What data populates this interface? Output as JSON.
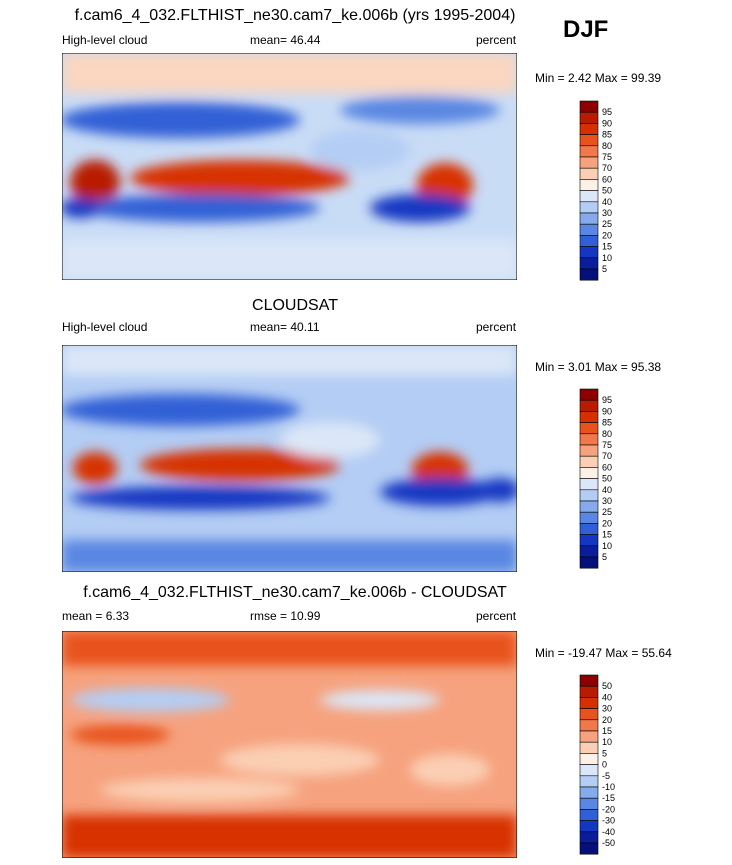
{
  "season": "DJF",
  "panels": [
    {
      "title": "f.cam6_4_032.FLTHIST_ne30.cam7_ke.006b (yrs 1995-2004)",
      "left": "High-level cloud",
      "center": "mean=  46.44",
      "right": "percent",
      "minmax": "Min =   2.42 Max =  99.39"
    },
    {
      "title": "CLOUDSAT",
      "left": "High-level cloud",
      "center": "mean=  40.11",
      "right": "percent",
      "minmax": "Min =   3.01 Max =  95.38"
    },
    {
      "title": "f.cam6_4_032.FLTHIST_ne30.cam7_ke.006b - CLOUDSAT",
      "left": "mean =   6.33",
      "center": "rmse =  10.99",
      "right": "percent",
      "minmax": "Min = -19.47 Max =  55.64"
    }
  ],
  "colorbars": {
    "field": {
      "labels": [
        "95",
        "90",
        "85",
        "80",
        "75",
        "70",
        "60",
        "50",
        "40",
        "30",
        "25",
        "20",
        "15",
        "10",
        "5"
      ],
      "colors": [
        "#8b0000",
        "#b71c00",
        "#d73000",
        "#e8521c",
        "#f0784a",
        "#f6a27e",
        "#fbcfb4",
        "#fdf0e6",
        "#dbe7f8",
        "#b4cdf4",
        "#86abec",
        "#5a87e2",
        "#3060d6",
        "#1238c2",
        "#0a1e9c",
        "#06107a"
      ]
    },
    "diff": {
      "labels": [
        "50",
        "40",
        "30",
        "20",
        "15",
        "10",
        "5",
        "0",
        "-5",
        "-10",
        "-15",
        "-20",
        "-30",
        "-40",
        "-50"
      ],
      "colors": [
        "#8b0000",
        "#b71c00",
        "#d73000",
        "#e8521c",
        "#f0784a",
        "#f6a27e",
        "#fbcfb4",
        "#fdf0e6",
        "#dbe7f8",
        "#b4cdf4",
        "#86abec",
        "#5a87e2",
        "#3060d6",
        "#1238c2",
        "#0a1e9c",
        "#06107a"
      ]
    }
  },
  "chart_data": [
    {
      "type": "heatmap",
      "title": "f.cam6_4_032.FLTHIST_ne30.cam7_ke.006b (yrs 1995-2004)",
      "variable": "High-level cloud",
      "units": "percent",
      "mean": 46.44,
      "min": 2.42,
      "max": 99.39,
      "levels": [
        5,
        10,
        15,
        20,
        25,
        30,
        40,
        50,
        60,
        70,
        75,
        80,
        85,
        90,
        95
      ]
    },
    {
      "type": "heatmap",
      "title": "CLOUDSAT",
      "variable": "High-level cloud",
      "units": "percent",
      "mean": 40.11,
      "min": 3.01,
      "max": 95.38,
      "levels": [
        5,
        10,
        15,
        20,
        25,
        30,
        40,
        50,
        60,
        70,
        75,
        80,
        85,
        90,
        95
      ]
    },
    {
      "type": "heatmap",
      "title": "f.cam6_4_032.FLTHIST_ne30.cam7_ke.006b - CLOUDSAT",
      "units": "percent",
      "mean": 6.33,
      "rmse": 10.99,
      "min": -19.47,
      "max": 55.64,
      "levels": [
        -50,
        -40,
        -30,
        -20,
        -15,
        -10,
        -5,
        0,
        5,
        10,
        15,
        20,
        30,
        40,
        50
      ]
    }
  ]
}
